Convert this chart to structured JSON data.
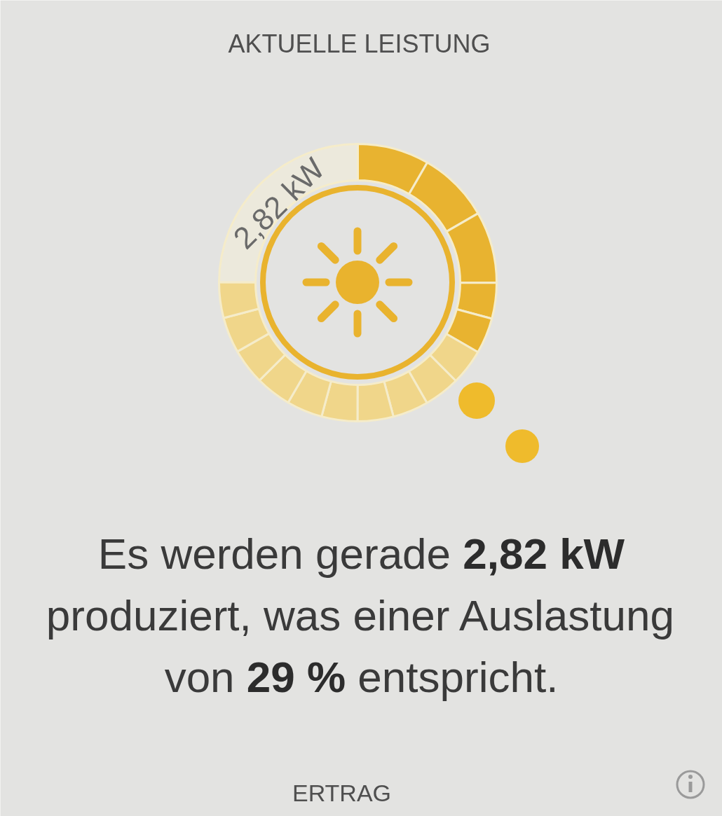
{
  "chart_data": {
    "type": "donut",
    "title": "AKTUELLE LEISTUNG",
    "categories": [
      null,
      null,
      null,
      null,
      null,
      null,
      null,
      null,
      null,
      null,
      null,
      null,
      null,
      null,
      null,
      null
    ],
    "values": [
      8.34,
      8.34,
      8.34,
      4.17,
      4.17,
      4.17,
      4.17,
      4.17,
      4.17,
      4.17,
      4.17,
      4.17,
      4.17,
      4.17,
      4.17,
      24.94
    ],
    "colors": [
      "#e8b330",
      "#e8b330",
      "#e8b330",
      "#e8b330",
      "#e8b330",
      "#f0d68a",
      "#f0d68a",
      "#f0d68a",
      "#f0d68a",
      "#f0d68a",
      "#f0d68a",
      "#f0d68a",
      "#f0d68a",
      "#f0d68a",
      "#f0d68a",
      "#ece9dc"
    ],
    "annotations": [
      "2,82 kW",
      "Es werden gerade 2,82 kW produziert, was einer Auslastung von 29 % entspricht.",
      "ERTRAG"
    ]
  }
}
